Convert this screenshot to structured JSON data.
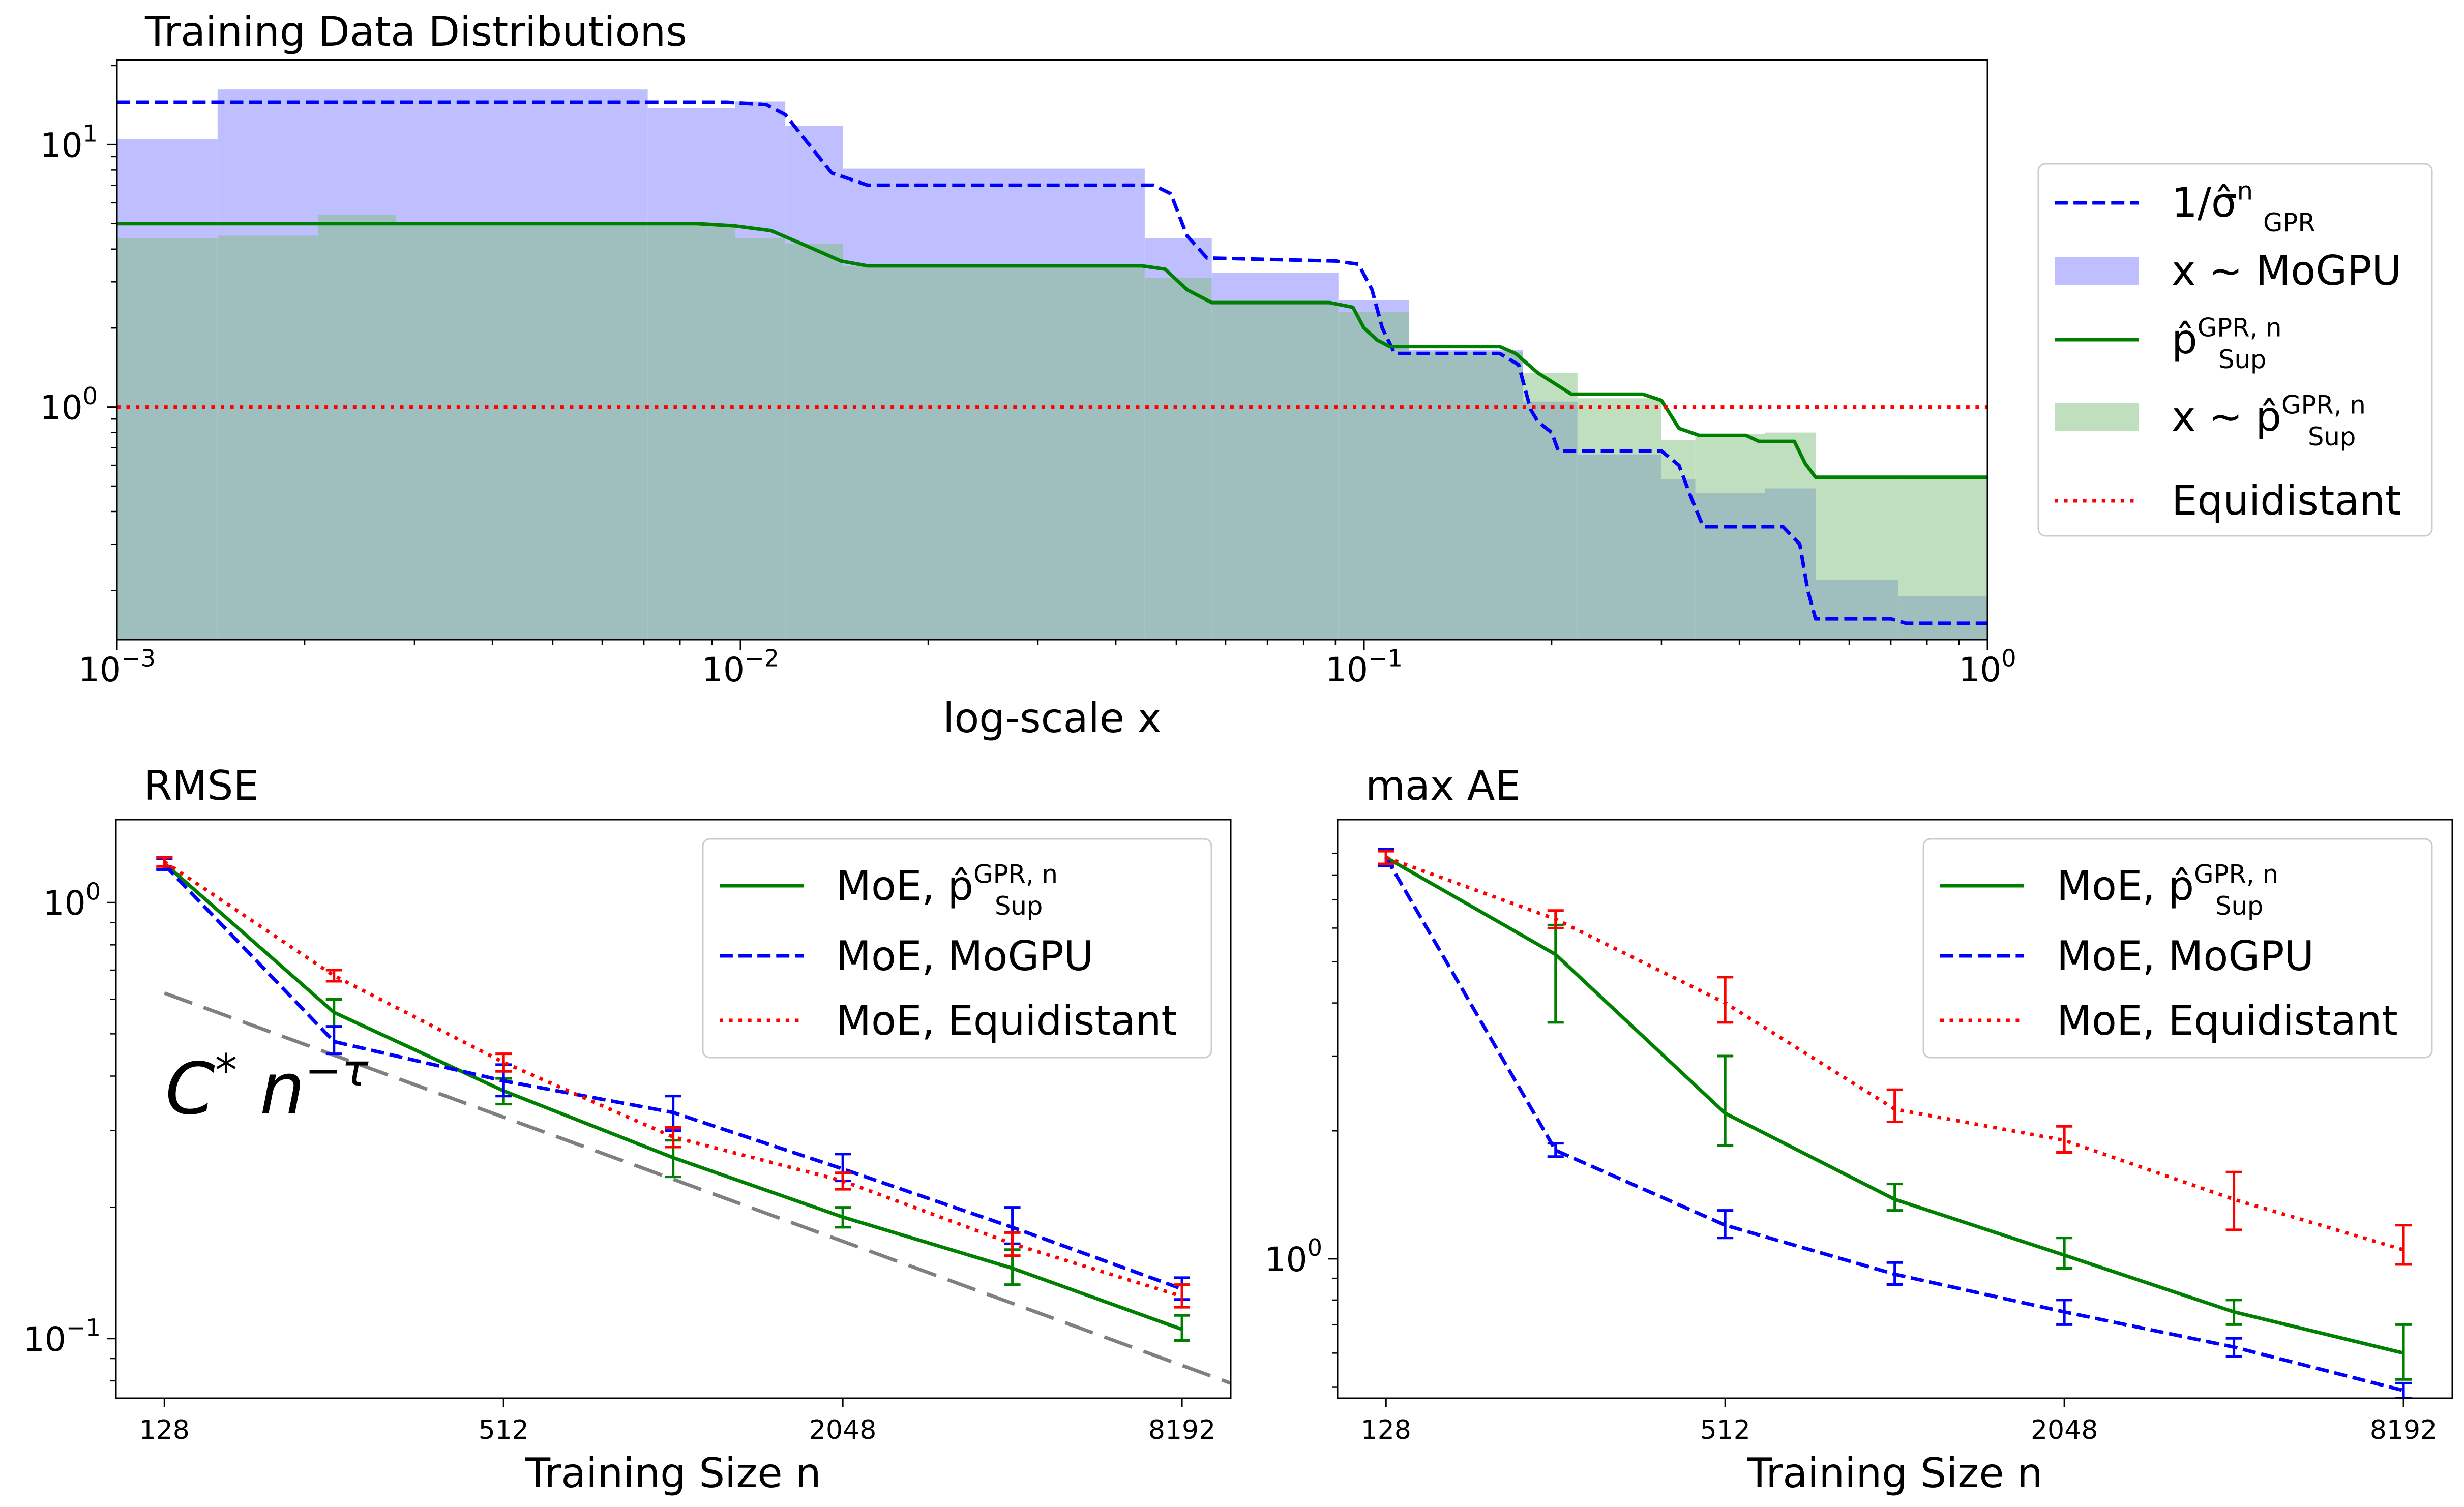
{
  "chart_data": [
    {
      "type": "area",
      "title": "Training Data Distributions",
      "xlabel": "log-scale x",
      "ylabel": "",
      "xscale": "log",
      "yscale": "log",
      "xlim": [
        0.001,
        1
      ],
      "ylim": [
        0.13,
        21
      ],
      "x_tick_labels": [
        {
          "base": "10",
          "exp": "−3"
        },
        {
          "base": "10",
          "exp": "−2"
        },
        {
          "base": "10",
          "exp": "−1"
        },
        {
          "base": "10",
          "exp": "0"
        }
      ],
      "y_tick_labels": [
        {
          "base": "10",
          "exp": "0"
        },
        {
          "base": "10",
          "exp": "1"
        }
      ],
      "legend": {
        "position": "right",
        "entries": [
          {
            "key": "sigma",
            "style": "dashed",
            "color": "#0000ff",
            "label_parts": {
              "main": "1/σ̂",
              "sup": "n",
              "sub": "GPR"
            }
          },
          {
            "key": "mogpu_hist",
            "style": "patch",
            "color": "#8080ff",
            "label_parts": {
              "main": "x ∼ MoGPU"
            }
          },
          {
            "key": "psup",
            "style": "solid",
            "color": "#008000",
            "label_parts": {
              "main": "p̂",
              "sup": "GPR, n",
              "sub": "Sup"
            }
          },
          {
            "key": "psup_hist",
            "style": "patch",
            "color": "#80c080",
            "label_parts": {
              "main": "x ∼ p̂",
              "sup": "GPR, n",
              "sub": "Sup"
            }
          },
          {
            "key": "equi",
            "style": "dotted",
            "color": "#ff0000",
            "label_parts": {
              "main": "Equidistant"
            }
          }
        ]
      },
      "series": [
        {
          "name": "1/σ̂ GPR n",
          "style": "dashed",
          "color": "#0000ff",
          "points": [
            [
              0.001,
              14.5
            ],
            [
              0.0095,
              14.5
            ],
            [
              0.011,
              14.2
            ],
            [
              0.0118,
              13.0
            ],
            [
              0.0128,
              10.2
            ],
            [
              0.014,
              7.8
            ],
            [
              0.016,
              7.0
            ],
            [
              0.046,
              7.0
            ],
            [
              0.049,
              6.5
            ],
            [
              0.052,
              4.5
            ],
            [
              0.056,
              3.7
            ],
            [
              0.09,
              3.6
            ],
            [
              0.098,
              3.5
            ],
            [
              0.103,
              2.8
            ],
            [
              0.107,
              2.0
            ],
            [
              0.112,
              1.6
            ],
            [
              0.165,
              1.6
            ],
            [
              0.177,
              1.45
            ],
            [
              0.185,
              0.98
            ],
            [
              0.19,
              0.88
            ],
            [
              0.2,
              0.8
            ],
            [
              0.205,
              0.68
            ],
            [
              0.3,
              0.68
            ],
            [
              0.32,
              0.6
            ],
            [
              0.335,
              0.45
            ],
            [
              0.35,
              0.35
            ],
            [
              0.47,
              0.35
            ],
            [
              0.5,
              0.3
            ],
            [
              0.515,
              0.2
            ],
            [
              0.53,
              0.156
            ],
            [
              0.7,
              0.156
            ],
            [
              0.74,
              0.15
            ],
            [
              1.0,
              0.15
            ]
          ]
        },
        {
          "name": "p̂ Sup GPR n",
          "style": "solid",
          "color": "#008000",
          "points": [
            [
              0.001,
              5.0
            ],
            [
              0.0085,
              5.0
            ],
            [
              0.0098,
              4.9
            ],
            [
              0.0112,
              4.7
            ],
            [
              0.0128,
              4.1
            ],
            [
              0.0145,
              3.6
            ],
            [
              0.016,
              3.45
            ],
            [
              0.044,
              3.45
            ],
            [
              0.048,
              3.35
            ],
            [
              0.052,
              2.8
            ],
            [
              0.057,
              2.5
            ],
            [
              0.088,
              2.5
            ],
            [
              0.096,
              2.4
            ],
            [
              0.1,
              2.0
            ],
            [
              0.105,
              1.8
            ],
            [
              0.11,
              1.7
            ],
            [
              0.165,
              1.7
            ],
            [
              0.175,
              1.6
            ],
            [
              0.19,
              1.35
            ],
            [
              0.2,
              1.25
            ],
            [
              0.215,
              1.12
            ],
            [
              0.28,
              1.12
            ],
            [
              0.3,
              1.06
            ],
            [
              0.32,
              0.83
            ],
            [
              0.345,
              0.78
            ],
            [
              0.41,
              0.78
            ],
            [
              0.43,
              0.74
            ],
            [
              0.49,
              0.74
            ],
            [
              0.51,
              0.61
            ],
            [
              0.53,
              0.54
            ],
            [
              1.0,
              0.54
            ]
          ]
        },
        {
          "name": "Equidistant",
          "style": "dotted",
          "color": "#ff0000",
          "points": [
            [
              0.001,
              1.0
            ],
            [
              1.0,
              1.0
            ]
          ]
        }
      ],
      "histograms": [
        {
          "name": "x ∼ MoGPU",
          "color": "#8080ff",
          "bins": [
            [
              0.001,
              0.00145,
              10.5
            ],
            [
              0.00145,
              0.0071,
              16.2
            ],
            [
              0.0071,
              0.0098,
              13.8
            ],
            [
              0.0098,
              0.0118,
              14.6
            ],
            [
              0.0118,
              0.0146,
              11.8
            ],
            [
              0.0146,
              0.0445,
              8.1
            ],
            [
              0.0445,
              0.057,
              4.4
            ],
            [
              0.057,
              0.091,
              3.25
            ],
            [
              0.091,
              0.118,
              2.55
            ],
            [
              0.118,
              0.18,
              1.65
            ],
            [
              0.18,
              0.22,
              1.05
            ],
            [
              0.22,
              0.3,
              0.66
            ],
            [
              0.3,
              0.34,
              0.53
            ],
            [
              0.34,
              0.44,
              0.47
            ],
            [
              0.44,
              0.53,
              0.49
            ],
            [
              0.53,
              0.72,
              0.22
            ],
            [
              0.72,
              1.0,
              0.19
            ]
          ]
        },
        {
          "name": "x ∼ p̂ Sup GPR n",
          "color": "#80c080",
          "bins": [
            [
              0.001,
              0.00145,
              4.4
            ],
            [
              0.00145,
              0.0021,
              4.5
            ],
            [
              0.0021,
              0.0028,
              5.4
            ],
            [
              0.0028,
              0.0071,
              5.0
            ],
            [
              0.0071,
              0.0098,
              5.0
            ],
            [
              0.0098,
              0.0118,
              4.4
            ],
            [
              0.0118,
              0.0146,
              4.2
            ],
            [
              0.0146,
              0.0445,
              3.45
            ],
            [
              0.0445,
              0.057,
              3.1
            ],
            [
              0.057,
              0.091,
              2.45
            ],
            [
              0.091,
              0.118,
              2.3
            ],
            [
              0.118,
              0.18,
              1.62
            ],
            [
              0.18,
              0.22,
              1.35
            ],
            [
              0.22,
              0.3,
              1.08
            ],
            [
              0.3,
              0.34,
              0.75
            ],
            [
              0.34,
              0.44,
              0.79
            ],
            [
              0.44,
              0.53,
              0.8
            ],
            [
              0.53,
              0.72,
              0.53
            ],
            [
              0.72,
              1.0,
              0.53
            ]
          ]
        }
      ]
    },
    {
      "type": "line",
      "title": "RMSE",
      "xlabel": "Training Size n",
      "xscale": "log2",
      "yscale": "log",
      "xlim": [
        105,
        10000
      ],
      "ylim": [
        0.073,
        1.55
      ],
      "x_tick_labels": [
        "128",
        "512",
        "2048",
        "8192"
      ],
      "y_tick_labels": [
        {
          "base": "10",
          "exp": "−1"
        },
        {
          "base": "10",
          "exp": "0"
        }
      ],
      "annotation": {
        "main": "C",
        "sup1": "*",
        "mid": " n",
        "sup2": "−τ",
        "color": "#808080"
      },
      "legend": {
        "position": "top-right",
        "entries": [
          {
            "style": "solid",
            "color": "#008000",
            "label_parts": {
              "main": "MoE, p̂",
              "sup": "GPR, n",
              "sub": "Sup"
            }
          },
          {
            "style": "dashed",
            "color": "#0000ff",
            "label_parts": {
              "main": "MoE, MoGPU"
            }
          },
          {
            "style": "dotted",
            "color": "#ff0000",
            "label_parts": {
              "main": "MoE, Equidistant"
            }
          }
        ]
      },
      "reference_line": {
        "name": "C* n^-τ",
        "color": "#808080",
        "points": [
          [
            128,
            0.62
          ],
          [
            10000,
            0.079
          ]
        ]
      },
      "series": [
        {
          "name": "MoE, p̂ Sup GPR n",
          "style": "solid",
          "color": "#008000",
          "x": [
            128,
            256,
            512,
            1024,
            2048,
            4096,
            8192
          ],
          "y": [
            1.23,
            0.56,
            0.37,
            0.26,
            0.19,
            0.145,
            0.105
          ],
          "err_low": [
            1.19,
            0.52,
            0.345,
            0.235,
            0.18,
            0.133,
            0.099
          ],
          "err_high": [
            1.27,
            0.6,
            0.395,
            0.285,
            0.2,
            0.16,
            0.113
          ]
        },
        {
          "name": "MoE, MoGPU",
          "style": "dashed",
          "color": "#0000ff",
          "x": [
            128,
            256,
            512,
            1024,
            2048,
            4096,
            8192
          ],
          "y": [
            1.22,
            0.48,
            0.39,
            0.33,
            0.245,
            0.18,
            0.13
          ],
          "err_low": [
            1.19,
            0.45,
            0.36,
            0.3,
            0.23,
            0.165,
            0.123
          ],
          "err_high": [
            1.26,
            0.52,
            0.425,
            0.36,
            0.265,
            0.2,
            0.138
          ]
        },
        {
          "name": "MoE, Equidistant",
          "style": "dotted",
          "color": "#ff0000",
          "x": [
            128,
            256,
            512,
            1024,
            2048,
            4096,
            8192
          ],
          "y": [
            1.24,
            0.68,
            0.43,
            0.29,
            0.23,
            0.165,
            0.125
          ],
          "err_low": [
            1.21,
            0.66,
            0.41,
            0.275,
            0.22,
            0.155,
            0.118
          ],
          "err_high": [
            1.27,
            0.7,
            0.45,
            0.305,
            0.24,
            0.175,
            0.133
          ]
        }
      ]
    },
    {
      "type": "line",
      "title": "max AE",
      "xlabel": "Training Size n",
      "xscale": "log2",
      "yscale": "log",
      "xlim": [
        105,
        10000
      ],
      "ylim": [
        0.47,
        10.8
      ],
      "x_tick_labels": [
        "128",
        "512",
        "2048",
        "8192"
      ],
      "y_tick_labels": [
        {
          "base": "10",
          "exp": "0"
        }
      ],
      "legend": {
        "position": "top-right",
        "entries": [
          {
            "style": "solid",
            "color": "#008000",
            "label_parts": {
              "main": "MoE, p̂",
              "sup": "GPR, n",
              "sub": "Sup"
            }
          },
          {
            "style": "dashed",
            "color": "#0000ff",
            "label_parts": {
              "main": "MoE, MoGPU"
            }
          },
          {
            "style": "dotted",
            "color": "#ff0000",
            "label_parts": {
              "main": "MoE, Equidistant"
            }
          }
        ]
      },
      "series": [
        {
          "name": "MoE, p̂ Sup GPR n",
          "style": "solid",
          "color": "#008000",
          "x": [
            128,
            256,
            512,
            1024,
            2048,
            4096,
            8192
          ],
          "y": [
            8.8,
            5.2,
            2.2,
            1.38,
            1.02,
            0.75,
            0.6
          ],
          "err_low": [
            8.4,
            3.6,
            1.85,
            1.3,
            0.95,
            0.7,
            0.52
          ],
          "err_high": [
            9.2,
            6.1,
            3.0,
            1.5,
            1.12,
            0.8,
            0.7
          ]
        },
        {
          "name": "MoE, MoGPU",
          "style": "dashed",
          "color": "#0000ff",
          "x": [
            128,
            256,
            512,
            1024,
            2048,
            4096,
            8192
          ],
          "y": [
            8.8,
            1.8,
            1.2,
            0.92,
            0.75,
            0.62,
            0.49
          ],
          "err_low": [
            8.4,
            1.74,
            1.12,
            0.87,
            0.7,
            0.59,
            0.47
          ],
          "err_high": [
            9.2,
            1.87,
            1.3,
            0.98,
            0.8,
            0.65,
            0.51
          ]
        },
        {
          "name": "MoE, Equidistant",
          "style": "dotted",
          "color": "#ff0000",
          "x": [
            128,
            256,
            512,
            1024,
            2048,
            4096,
            8192
          ],
          "y": [
            8.8,
            6.3,
            4.0,
            2.25,
            1.9,
            1.38,
            1.05
          ],
          "err_low": [
            8.5,
            6.0,
            3.6,
            2.1,
            1.78,
            1.17,
            0.97
          ],
          "err_high": [
            9.1,
            6.6,
            4.6,
            2.5,
            2.05,
            1.6,
            1.2
          ]
        }
      ]
    }
  ]
}
